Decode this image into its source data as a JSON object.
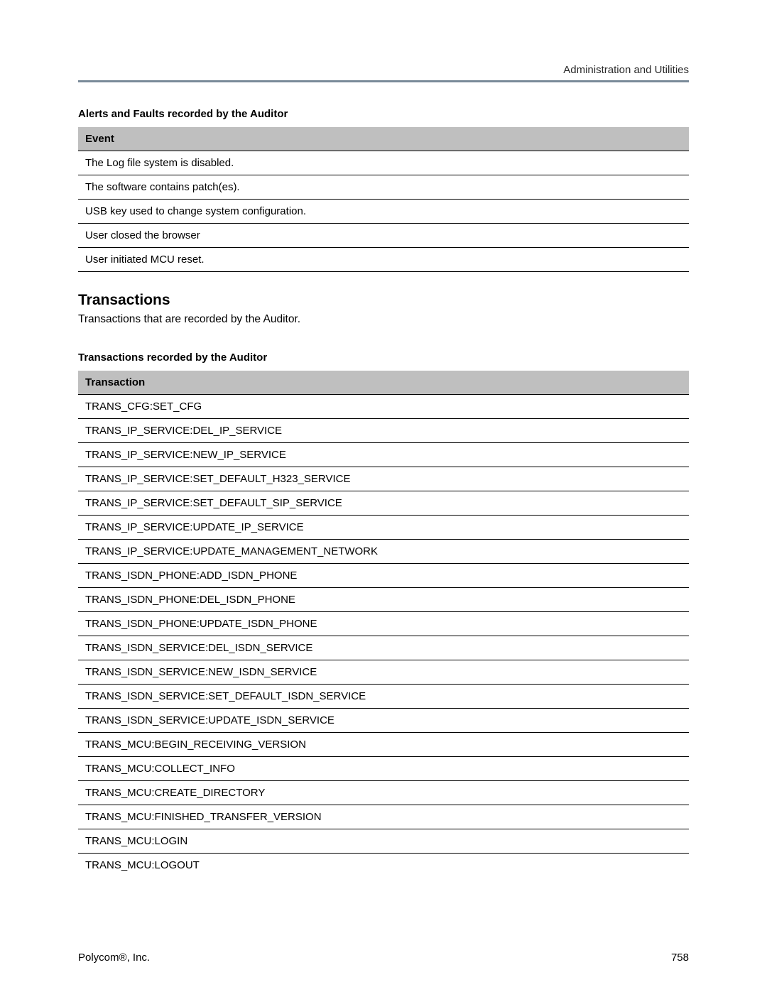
{
  "header": {
    "title": "Administration and Utilities"
  },
  "alerts_section": {
    "title": "Alerts and Faults recorded by the Auditor",
    "column_header": "Event",
    "rows": [
      "The Log file system is disabled.",
      "The software contains patch(es).",
      "USB key used to change system configuration.",
      "User closed the browser",
      "User initiated MCU reset."
    ]
  },
  "transactions_section": {
    "heading": "Transactions",
    "intro": "Transactions that are recorded by the Auditor.",
    "title": "Transactions recorded by the Auditor",
    "column_header": "Transaction",
    "rows": [
      "TRANS_CFG:SET_CFG",
      "TRANS_IP_SERVICE:DEL_IP_SERVICE",
      "TRANS_IP_SERVICE:NEW_IP_SERVICE",
      "TRANS_IP_SERVICE:SET_DEFAULT_H323_SERVICE",
      "TRANS_IP_SERVICE:SET_DEFAULT_SIP_SERVICE",
      "TRANS_IP_SERVICE:UPDATE_IP_SERVICE",
      "TRANS_IP_SERVICE:UPDATE_MANAGEMENT_NETWORK",
      "TRANS_ISDN_PHONE:ADD_ISDN_PHONE",
      "TRANS_ISDN_PHONE:DEL_ISDN_PHONE",
      "TRANS_ISDN_PHONE:UPDATE_ISDN_PHONE",
      "TRANS_ISDN_SERVICE:DEL_ISDN_SERVICE",
      "TRANS_ISDN_SERVICE:NEW_ISDN_SERVICE",
      "TRANS_ISDN_SERVICE:SET_DEFAULT_ISDN_SERVICE",
      "TRANS_ISDN_SERVICE:UPDATE_ISDN_SERVICE",
      "TRANS_MCU:BEGIN_RECEIVING_VERSION",
      "TRANS_MCU:COLLECT_INFO",
      "TRANS_MCU:CREATE_DIRECTORY",
      "TRANS_MCU:FINISHED_TRANSFER_VERSION",
      "TRANS_MCU:LOGIN",
      "TRANS_MCU:LOGOUT"
    ]
  },
  "footer": {
    "company": "Polycom®, Inc.",
    "page_number": "758"
  },
  "style": {
    "header_border_color": "#7a8a99",
    "table_header_bg": "#bfbfbf",
    "row_border_color": "#000000",
    "font_family": "Arial",
    "body_font_size": 15,
    "h2_font_size": 21
  }
}
